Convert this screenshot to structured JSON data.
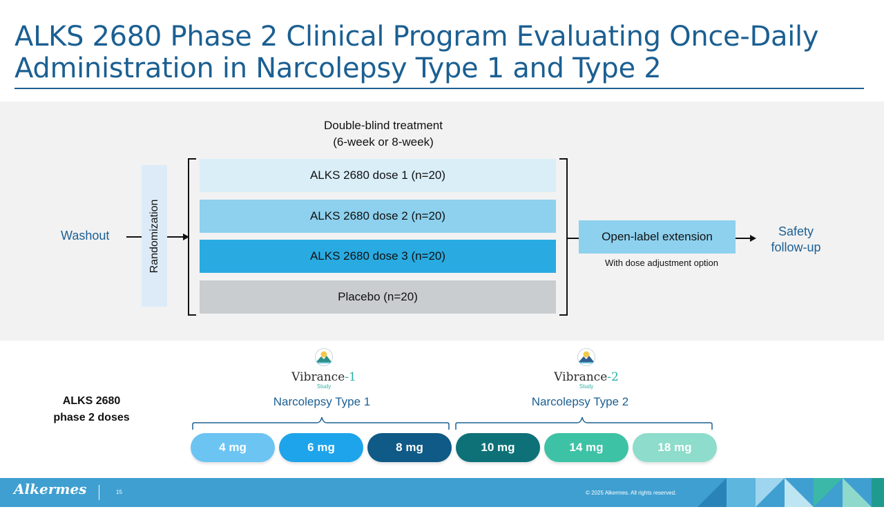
{
  "title": "ALKS 2680 Phase 2 Clinical Program Evaluating Once-Daily Administration in Narcolepsy Type 1 and Type 2",
  "design": {
    "treatment_title": "Double-blind treatment",
    "treatment_subtitle": "(6-week or 8-week)",
    "washout": "Washout",
    "randomization": "Randomization",
    "arms": [
      {
        "label": "ALKS 2680 dose 1 (n=20)",
        "color": "#daeef8"
      },
      {
        "label": "ALKS 2680 dose 2 (n=20)",
        "color": "#8dd1ee"
      },
      {
        "label": "ALKS 2680 dose 3 (n=20)",
        "color": "#29abe2"
      },
      {
        "label": "Placebo (n=20)",
        "color": "#c9cdd0"
      }
    ],
    "open_label": "Open-label extension",
    "open_label_note": "With dose adjustment option",
    "safety_line1": "Safety",
    "safety_line2": "follow-up"
  },
  "studies": [
    {
      "name": "Vibrance",
      "number": "-1",
      "sub": "Study",
      "label": "Narcolepsy Type 1",
      "icon": "mountain-sun-icon"
    },
    {
      "name": "Vibrance",
      "number": "-2",
      "sub": "Study",
      "label": "Narcolepsy Type 2",
      "icon": "mountain-sun-icon"
    }
  ],
  "doses_label_line1": "ALKS 2680",
  "doses_label_line2": "phase 2 doses",
  "doses": [
    {
      "label": "4 mg",
      "color": "#6cc4f2"
    },
    {
      "label": "6 mg",
      "color": "#1ea4ea"
    },
    {
      "label": "8 mg",
      "color": "#0f5a86"
    },
    {
      "label": "10 mg",
      "color": "#0e7178"
    },
    {
      "label": "14 mg",
      "color": "#3ec2a5"
    },
    {
      "label": "18 mg",
      "color": "#8edccb"
    }
  ],
  "footer": {
    "brand": "Alkermes",
    "page": "15",
    "copyright": "© 2025 Alkermes. All rights reserved."
  }
}
